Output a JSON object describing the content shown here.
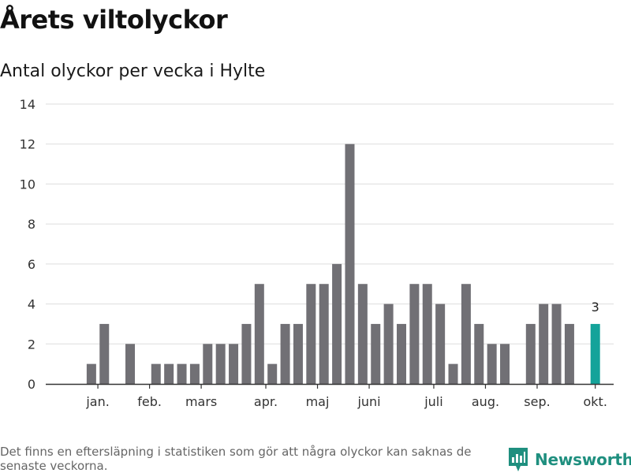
{
  "header": {
    "title": "Årets viltolyckor",
    "subtitle": "Antal olyckor per vecka i Hylte"
  },
  "footer": {
    "note": "Det finns en eftersläpning i statistiken som gör att några olyckor kan saknas de senaste veckorna.",
    "brand": "Newsworthy"
  },
  "colors": {
    "bar": "#717075",
    "highlight": "#14a39a",
    "grid": "#dddddd",
    "axis": "#333333",
    "brand": "#1f8f7f"
  },
  "chart_data": {
    "type": "bar",
    "title": "Årets viltolyckor",
    "subtitle": "Antal olyckor per vecka i Hylte",
    "xlabel": "",
    "ylabel": "",
    "ylim": [
      0,
      14
    ],
    "yticks": [
      0,
      2,
      4,
      6,
      8,
      10,
      12,
      14
    ],
    "grid": true,
    "weeks": [
      1,
      2,
      3,
      4,
      5,
      6,
      7,
      8,
      9,
      10,
      11,
      12,
      13,
      14,
      15,
      16,
      17,
      18,
      19,
      20,
      21,
      22,
      23,
      24,
      25,
      26,
      27,
      28,
      29,
      30,
      31,
      32,
      33,
      34,
      35,
      36,
      37,
      38,
      39,
      40,
      41,
      42
    ],
    "values": [
      0,
      1,
      3,
      0,
      2,
      0,
      1,
      1,
      1,
      1,
      2,
      2,
      2,
      3,
      5,
      1,
      3,
      3,
      5,
      5,
      6,
      12,
      5,
      3,
      4,
      3,
      5,
      5,
      4,
      1,
      5,
      3,
      2,
      2,
      0,
      3,
      4,
      4,
      3,
      0,
      3,
      0
    ],
    "highlight_index": 40,
    "highlight_label": "3",
    "month_ticks": [
      {
        "label": "jan.",
        "week": 2.5
      },
      {
        "label": "feb.",
        "week": 6.5
      },
      {
        "label": "mars",
        "week": 10.5
      },
      {
        "label": "apr.",
        "week": 15.5
      },
      {
        "label": "maj",
        "week": 19.5
      },
      {
        "label": "juni",
        "week": 23.5
      },
      {
        "label": "juli",
        "week": 28.5
      },
      {
        "label": "aug.",
        "week": 32.5
      },
      {
        "label": "sep.",
        "week": 36.5
      },
      {
        "label": "okt.",
        "week": 41
      }
    ]
  }
}
